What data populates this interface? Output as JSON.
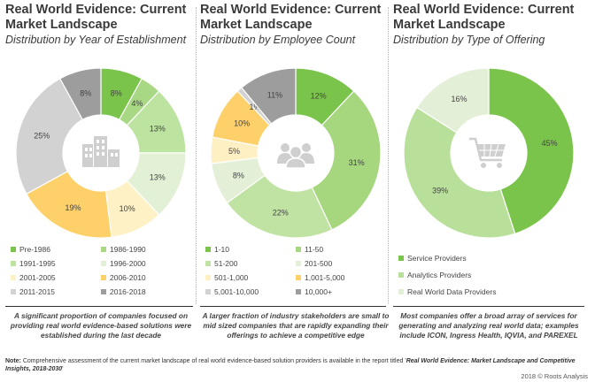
{
  "chart_data": [
    {
      "type": "pie",
      "title": "Real World Evidence: Current Market Landscape",
      "subtitle": "Distribution by Year of Establishment",
      "icon": "buildings-icon",
      "categories": [
        "Pre-1986",
        "1986-1990",
        "1991-1995",
        "1996-2000",
        "2001-2005",
        "2006-2010",
        "2011-2015",
        "2016-2018"
      ],
      "values": [
        8,
        4,
        13,
        13,
        10,
        19,
        25,
        8
      ],
      "labels": [
        "8%",
        "4%",
        "13%",
        "13%",
        "10%",
        "19%",
        "25%",
        "8%"
      ],
      "colors": [
        "#7bc44b",
        "#a8d884",
        "#bde3a0",
        "#e2f0d6",
        "#fff1c6",
        "#fdd06a",
        "#d2d2d2",
        "#9d9d9d"
      ],
      "caption": "A significant proportion of companies focused on providing real world evidence-based solutions were established during the last decade"
    },
    {
      "type": "pie",
      "title": "Real World Evidence: Current Market Landscape",
      "subtitle": "Distribution by Employee Count",
      "icon": "people-icon",
      "categories": [
        "1-10",
        "11-50",
        "51-200",
        "201-500",
        "501-1,000",
        "1,001-5,000",
        "5,001-10,000",
        "10,000+"
      ],
      "values": [
        12,
        31,
        22,
        8,
        5,
        10,
        1,
        11
      ],
      "labels": [
        "12%",
        "31%",
        "22%",
        "8%",
        "5%",
        "10%",
        "1%",
        "11%"
      ],
      "colors": [
        "#7bc44b",
        "#a6d67d",
        "#c0e3a3",
        "#e3f0d7",
        "#fff0c3",
        "#fdd06a",
        "#d2d2d2",
        "#9d9d9d"
      ],
      "caption": "A larger fraction of industry stakeholders are small to mid sized companies that are rapidly expanding their offerings to achieve a competitive edge"
    },
    {
      "type": "pie",
      "title": "Real World Evidence: Current Market Landscape",
      "subtitle": "Distribution by Type of Offering",
      "icon": "shopping-cart-icon",
      "categories": [
        "Service Providers",
        "Analytics Providers",
        "Real World Data Providers"
      ],
      "values": [
        45,
        39,
        16
      ],
      "labels": [
        "45%",
        "39%",
        "16%"
      ],
      "colors": [
        "#7bc44b",
        "#b9e09a",
        "#e3f0d7"
      ],
      "caption": "Most companies offer a broad array of services for generating and analyzing real world data; examples include ICON, Ingress Health, IQVIA, and PAREXEL"
    }
  ],
  "note": {
    "prefix": "Note:",
    "text": "Comprehensive assessment of the current market landscape of real world evidence-based solution providers is available in the report titled '",
    "report_title": "Real World Evidence: Market Landscape and Competitive Insights, 2018-2030",
    "suffix": "'"
  },
  "credit": "2018 © Roots Analysis"
}
